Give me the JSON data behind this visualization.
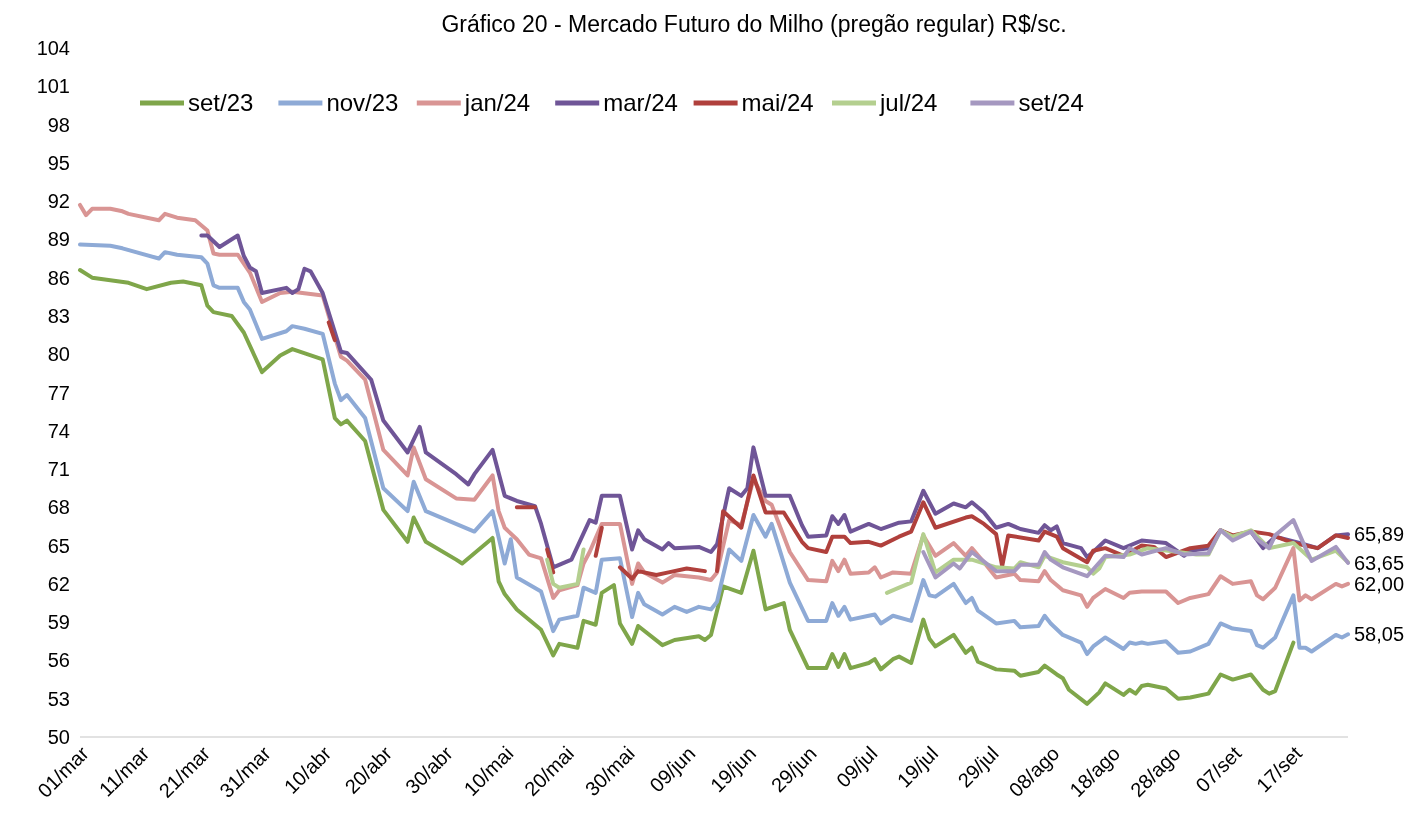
{
  "chart_data": {
    "type": "line",
    "title": "Gráfico 20 - Mercado Futuro do Milho (pregão regular) R$/sc.",
    "xlim": [
      "--03-01",
      "--09-26"
    ],
    "ylim": [
      50,
      104
    ],
    "yticks": [
      50,
      53,
      56,
      59,
      62,
      65,
      68,
      71,
      74,
      77,
      80,
      83,
      86,
      89,
      92,
      95,
      98,
      101,
      104
    ],
    "xticks": [
      {
        "value": "--03-01",
        "label": "01/mar"
      },
      {
        "value": "--03-11",
        "label": "11/mar"
      },
      {
        "value": "--03-21",
        "label": "21/mar"
      },
      {
        "value": "--03-31",
        "label": "31/mar"
      },
      {
        "value": "--04-10",
        "label": "10/abr"
      },
      {
        "value": "--04-20",
        "label": "20/abr"
      },
      {
        "value": "--04-30",
        "label": "30/abr"
      },
      {
        "value": "--05-10",
        "label": "10/mai"
      },
      {
        "value": "--05-20",
        "label": "20/mai"
      },
      {
        "value": "--05-30",
        "label": "30/mai"
      },
      {
        "value": "--06-09",
        "label": "09/jun"
      },
      {
        "value": "--06-19",
        "label": "19/jun"
      },
      {
        "value": "--06-29",
        "label": "29/jun"
      },
      {
        "value": "--07-09",
        "label": "09/jul"
      },
      {
        "value": "--07-19",
        "label": "19/jul"
      },
      {
        "value": "--07-29",
        "label": "29/jul"
      },
      {
        "value": "--08-08",
        "label": "08/ago"
      },
      {
        "value": "--08-18",
        "label": "18/ago"
      },
      {
        "value": "--08-28",
        "label": "28/ago"
      },
      {
        "value": "--09-07",
        "label": "07/set"
      },
      {
        "value": "--09-17",
        "label": "17/set"
      }
    ],
    "legend": "top",
    "grid": false,
    "marker": "none",
    "line_style": "solid",
    "annotations": [
      {
        "text": "65,89",
        "x": "--09-26",
        "y": 65.89
      },
      {
        "text": "63,65",
        "x": "--09-26",
        "y": 63.65
      },
      {
        "text": "62,00",
        "x": "--09-26",
        "y": 62.0
      },
      {
        "text": "58,05",
        "x": "--09-26",
        "y": 58.05
      }
    ],
    "series": [
      {
        "name": "set/23",
        "color": "#7fa64a",
        "x": [
          "--03-01",
          "--03-03",
          "--03-09",
          "--03-12",
          "--03-16",
          "--03-18",
          "--03-21",
          "--03-22",
          "--03-23",
          "--03-26",
          "--03-28",
          "--03-31",
          "--04-03",
          "--04-05",
          "--04-10",
          "--04-12",
          "--04-13",
          "--04-14",
          "--04-17",
          "--04-20",
          "--04-24",
          "--04-25",
          "--04-27",
          "--05-02",
          "--05-03",
          "--05-08",
          "--05-09",
          "--05-10",
          "--05-12",
          "--05-16",
          "--05-18",
          "--05-19",
          "--05-22",
          "--05-23",
          "--05-25",
          "--05-26",
          "--05-28",
          "--05-29",
          "--05-31",
          "--06-01",
          "--06-05",
          "--06-07",
          "--06-11",
          "--06-12",
          "--06-13",
          "--06-15",
          "--06-18",
          "--06-20",
          "--06-22",
          "--06-25",
          "--06-26",
          "--06-29",
          "--07-02",
          "--07-03",
          "--07-04",
          "--07-05",
          "--07-06",
          "--07-09",
          "--07-10",
          "--07-11",
          "--07-13",
          "--07-14",
          "--07-16",
          "--07-18",
          "--07-19",
          "--07-20",
          "--07-23",
          "--07-25",
          "--07-26",
          "--07-27",
          "--07-30",
          "--08-02",
          "--08-03",
          "--08-06",
          "--08-07",
          "--08-09",
          "--08-10",
          "--08-11",
          "--08-14",
          "--08-16",
          "--08-17",
          "--08-20",
          "--08-21",
          "--08-22",
          "--08-23",
          "--08-24",
          "--08-27",
          "--08-29",
          "--08-31",
          "--09-03",
          "--09-05",
          "--09-07",
          "--09-10",
          "--09-12",
          "--09-13",
          "--09-14",
          "--09-17"
        ],
        "values": [
          86.6,
          86.0,
          85.6,
          85.1,
          85.6,
          85.7,
          85.4,
          83.8,
          83.3,
          83.0,
          81.7,
          78.6,
          79.9,
          80.4,
          79.6,
          75.0,
          74.5,
          74.8,
          73.2,
          67.8,
          65.3,
          67.2,
          65.3,
          63.9,
          63.6,
          65.6,
          62.2,
          61.2,
          60.0,
          58.4,
          56.4,
          57.3,
          57.0,
          59.1,
          58.8,
          61.3,
          61.9,
          58.9,
          57.3,
          58.7,
          57.2,
          57.6,
          57.9,
          57.6,
          58.0,
          61.8,
          61.3,
          64.6,
          60.0,
          60.5,
          58.4,
          55.4,
          55.4,
          56.5,
          55.5,
          56.5,
          55.4,
          55.8,
          56.1,
          55.3,
          56.1,
          56.3,
          55.8,
          59.2,
          57.7,
          57.1,
          58.0,
          56.6,
          57.0,
          55.9,
          55.3,
          55.2,
          54.8,
          55.1,
          55.6,
          54.9,
          54.6,
          53.7,
          52.6,
          53.5,
          54.2,
          53.3,
          53.7,
          53.4,
          54.0,
          54.1,
          53.8,
          53.0,
          53.1,
          53.4,
          54.9,
          54.5,
          54.9,
          53.7,
          53.4,
          53.6,
          57.4
        ]
      },
      {
        "name": "nov/23",
        "color": "#8eaad6",
        "x": [
          "--03-01",
          "--03-06",
          "--03-08",
          "--03-14",
          "--03-15",
          "--03-17",
          "--03-21",
          "--03-22",
          "--03-23",
          "--03-24",
          "--03-27",
          "--03-28",
          "--03-29",
          "--03-31",
          "--04-04",
          "--04-05",
          "--04-07",
          "--04-10",
          "--04-12",
          "--04-13",
          "--04-14",
          "--04-17",
          "--04-20",
          "--04-24",
          "--04-25",
          "--04-27",
          "--05-05",
          "--05-08",
          "--05-10",
          "--05-11",
          "--05-12",
          "--05-16",
          "--05-18",
          "--05-19",
          "--05-22",
          "--05-23",
          "--05-25",
          "--05-26",
          "--05-29",
          "--05-31",
          "--06-01",
          "--06-02",
          "--06-05",
          "--06-07",
          "--06-09",
          "--06-11",
          "--06-13",
          "--06-14",
          "--06-16",
          "--06-18",
          "--06-20",
          "--06-22",
          "--06-23",
          "--06-26",
          "--06-29",
          "--07-02",
          "--07-03",
          "--07-04",
          "--07-05",
          "--07-06",
          "--07-09",
          "--07-10",
          "--07-11",
          "--07-13",
          "--07-16",
          "--07-18",
          "--07-19",
          "--07-20",
          "--07-23",
          "--07-25",
          "--07-26",
          "--07-27",
          "--07-30",
          "--08-02",
          "--08-03",
          "--08-06",
          "--08-07",
          "--08-08",
          "--08-10",
          "--08-13",
          "--08-14",
          "--08-15",
          "--08-17",
          "--08-20",
          "--08-21",
          "--08-22",
          "--08-23",
          "--08-24",
          "--08-27",
          "--08-29",
          "--08-31",
          "--09-03",
          "--09-05",
          "--09-07",
          "--09-10",
          "--09-11",
          "--09-12",
          "--09-14",
          "--09-17",
          "--09-18",
          "--09-19",
          "--09-20",
          "--09-24",
          "--09-25",
          "--09-26"
        ],
        "values": [
          88.6,
          88.5,
          88.3,
          87.5,
          88.0,
          87.8,
          87.6,
          87.1,
          85.4,
          85.2,
          85.2,
          84.1,
          83.5,
          81.2,
          81.8,
          82.2,
          82.0,
          81.6,
          77.7,
          76.4,
          76.8,
          75.0,
          69.5,
          67.7,
          70.0,
          67.7,
          66.1,
          67.7,
          63.6,
          65.5,
          62.5,
          61.4,
          58.3,
          59.2,
          59.5,
          61.7,
          61.3,
          63.9,
          64.0,
          59.4,
          61.3,
          60.4,
          59.6,
          60.2,
          59.8,
          60.2,
          60.0,
          60.6,
          64.7,
          63.8,
          67.4,
          65.7,
          66.7,
          62.1,
          59.1,
          59.1,
          60.5,
          59.5,
          60.2,
          59.2,
          59.5,
          59.6,
          58.9,
          59.5,
          59.1,
          62.3,
          61.1,
          61.0,
          62.0,
          60.5,
          60.9,
          59.9,
          58.9,
          59.1,
          58.6,
          58.7,
          59.5,
          58.9,
          58.0,
          57.4,
          56.5,
          57.1,
          57.8,
          56.9,
          57.4,
          57.3,
          57.4,
          57.3,
          57.5,
          56.6,
          56.7,
          57.3,
          58.9,
          58.5,
          58.3,
          57.2,
          57.0,
          57.8,
          61.1,
          57.0,
          57.0,
          56.7,
          58.0,
          57.8,
          58.05
        ]
      },
      {
        "name": "jan/24",
        "color": "#d99594",
        "x": [
          "--03-01",
          "--03-02",
          "--03-03",
          "--03-06",
          "--03-08",
          "--03-09",
          "--03-14",
          "--03-15",
          "--03-17",
          "--03-20",
          "--03-22",
          "--03-23",
          "--03-24",
          "--03-27",
          "--03-29",
          "--03-31",
          "--04-03",
          "--04-05",
          "--04-10",
          "--04-13",
          "--04-14",
          "--04-17",
          "--04-20",
          "--04-24",
          "--04-25",
          "--04-27",
          "--05-02",
          "--05-05",
          "--05-08",
          "--05-09",
          "--05-10",
          "--05-12",
          "--05-14",
          "--05-16",
          "--05-18",
          "--05-19",
          "--05-22",
          "--05-23",
          "--05-24",
          "--05-26",
          "--05-29",
          "--05-31",
          "--06-01",
          "--06-02",
          "--06-05",
          "--06-07",
          "--06-11",
          "--06-13",
          "--06-14",
          "--06-16",
          "--06-18",
          "--06-20",
          "--06-22",
          "--06-23",
          "--06-26",
          "--06-29",
          "--07-02",
          "--07-03",
          "--07-04",
          "--07-05",
          "--07-06",
          "--07-09",
          "--07-10",
          "--07-11",
          "--07-13",
          "--07-16",
          "--07-18",
          "--07-20",
          "--07-23",
          "--07-25",
          "--07-26",
          "--07-28",
          "--07-30",
          "--08-02",
          "--08-03",
          "--08-06",
          "--08-07",
          "--08-08",
          "--08-10",
          "--08-13",
          "--08-14",
          "--08-15",
          "--08-17",
          "--08-20",
          "--08-21",
          "--08-23",
          "--08-27",
          "--08-29",
          "--08-31",
          "--09-03",
          "--09-05",
          "--09-07",
          "--09-10",
          "--09-11",
          "--09-12",
          "--09-14",
          "--09-17",
          "--09-18",
          "--09-19",
          "--09-20",
          "--09-24",
          "--09-25",
          "--09-26"
        ],
        "values": [
          91.7,
          90.9,
          91.4,
          91.4,
          91.2,
          91.0,
          90.5,
          91.0,
          90.7,
          90.5,
          89.7,
          87.9,
          87.8,
          87.8,
          86.4,
          84.1,
          84.8,
          84.9,
          84.6,
          79.8,
          79.5,
          78.0,
          72.5,
          70.5,
          72.7,
          70.2,
          68.7,
          68.6,
          70.5,
          67.7,
          66.4,
          65.5,
          64.3,
          64.0,
          60.9,
          61.5,
          61.9,
          63.6,
          64.5,
          66.7,
          66.7,
          62.0,
          63.6,
          62.9,
          62.1,
          62.7,
          62.5,
          62.3,
          62.9,
          67.0,
          66.6,
          70.2,
          68.5,
          68.2,
          64.5,
          62.3,
          62.2,
          63.8,
          63.0,
          63.9,
          62.8,
          62.9,
          63.3,
          62.5,
          62.9,
          62.8,
          65.8,
          64.2,
          65.2,
          64.2,
          64.8,
          63.7,
          62.5,
          62.8,
          62.3,
          62.2,
          63.0,
          62.3,
          61.5,
          61.1,
          60.2,
          60.9,
          61.6,
          60.9,
          61.3,
          61.4,
          61.4,
          60.5,
          60.9,
          61.2,
          62.6,
          62.0,
          62.2,
          61.1,
          60.8,
          61.7,
          64.8,
          60.7,
          61.1,
          60.8,
          62.0,
          61.8,
          62.0
        ]
      },
      {
        "name": "mar/24",
        "color": "#6f5597",
        "x": [
          "--03-21",
          "--03-22",
          "--03-24",
          "--03-27",
          "--03-28",
          "--03-29",
          "--03-30",
          "--03-31",
          "--04-04",
          "--04-05",
          "--04-06",
          "--04-07",
          "--04-08",
          "--04-10",
          "--04-13",
          "--04-14",
          "--04-18",
          "--04-20",
          "--04-24",
          "--04-26",
          "--04-27",
          "--05-02",
          "--05-04",
          "--05-05",
          "--05-08",
          "--05-10",
          "--05-12",
          "--05-15",
          "--05-16",
          "--05-18",
          "--05-21",
          "--05-24",
          "--05-25",
          "--05-26",
          "--05-29",
          "--05-31",
          "--06-01",
          "--06-02",
          "--06-05",
          "--06-06",
          "--06-07",
          "--06-11",
          "--06-13",
          "--06-14",
          "--06-16",
          "--06-18",
          "--06-19",
          "--06-20",
          "--06-22",
          "--06-26",
          "--06-28",
          "--06-29",
          "--07-02",
          "--07-03",
          "--07-04",
          "--07-05",
          "--07-06",
          "--07-09",
          "--07-11",
          "--07-14",
          "--07-16",
          "--07-18",
          "--07-20",
          "--07-23",
          "--07-25",
          "--07-26",
          "--07-28",
          "--07-30",
          "--08-01",
          "--08-03",
          "--08-06",
          "--08-07",
          "--08-08",
          "--08-09",
          "--08-10",
          "--08-13",
          "--08-14",
          "--08-15",
          "--08-17",
          "--08-20",
          "--08-23",
          "--08-27",
          "--08-30",
          "--08-31",
          "--09-03",
          "--09-05",
          "--09-07",
          "--09-10",
          "--09-12",
          "--09-14",
          "--09-18",
          "--09-21",
          "--09-24",
          "--09-26"
        ],
        "values": [
          89.3,
          89.3,
          88.4,
          89.3,
          87.7,
          86.8,
          86.5,
          84.8,
          85.2,
          84.8,
          85.1,
          86.7,
          86.5,
          84.8,
          80.2,
          80.1,
          78.0,
          74.8,
          72.3,
          74.3,
          72.3,
          70.6,
          69.8,
          70.6,
          72.5,
          68.9,
          68.5,
          68.1,
          66.7,
          63.3,
          63.9,
          67.0,
          66.8,
          68.9,
          68.9,
          64.7,
          66.2,
          65.5,
          64.7,
          65.2,
          64.8,
          64.9,
          64.5,
          65.1,
          69.5,
          68.9,
          69.5,
          72.7,
          68.9,
          68.9,
          66.6,
          65.7,
          65.8,
          67.3,
          66.7,
          67.4,
          66.1,
          66.7,
          66.3,
          66.8,
          66.9,
          69.3,
          67.5,
          68.3,
          68.0,
          68.4,
          67.6,
          66.4,
          66.7,
          66.3,
          66.0,
          66.6,
          66.2,
          66.5,
          65.2,
          64.8,
          64.1,
          64.5,
          65.4,
          64.8,
          65.4,
          65.2,
          64.2,
          64.6,
          64.8,
          66.2,
          65.7,
          66.1,
          64.8,
          65.7,
          65.2,
          64.8,
          65.8,
          65.89
        ]
      },
      {
        "name": "mai/24",
        "color": "#b0403c",
        "x": [
          "--04-11",
          "--04-12",
          "--04-13",
          "--05-12",
          "--05-15",
          "--05-16",
          "--05-17",
          "--05-18",
          "--05-20",
          "--05-25",
          "--05-26",
          "--05-27",
          "--05-29",
          "--05-31",
          "--06-01",
          "--06-04",
          "--06-06",
          "--06-09",
          "--06-12",
          "--06-13",
          "--06-14",
          "--06-15",
          "--06-18",
          "--06-20",
          "--06-22",
          "--06-25",
          "--06-28",
          "--06-29",
          "--07-02",
          "--07-03",
          "--07-05",
          "--07-06",
          "--07-09",
          "--07-11",
          "--07-14",
          "--07-16",
          "--07-18",
          "--07-20",
          "--07-25",
          "--07-26",
          "--07-28",
          "--07-30",
          "--07-31",
          "--08-01",
          "--08-06",
          "--08-07",
          "--08-09",
          "--08-10",
          "--08-14",
          "--08-15",
          "--08-17",
          "--08-20",
          "--08-23",
          "--08-25",
          "--08-27",
          "--08-31",
          "--09-03",
          "--09-05",
          "--09-07",
          "--09-10",
          "--09-13",
          "--09-17",
          "--09-21",
          "--09-24",
          "--09-26"
        ],
        "values": [
          82.5,
          81.1,
          null,
          68.0,
          68.0,
          null,
          64.7,
          62.9,
          null,
          64.2,
          66.4,
          null,
          63.3,
          62.4,
          63.0,
          62.7,
          62.9,
          63.2,
          63.0,
          null,
          63.0,
          67.7,
          66.4,
          70.5,
          67.6,
          67.6,
          65.3,
          64.8,
          64.5,
          65.7,
          65.7,
          65.2,
          65.3,
          65.0,
          65.7,
          66.1,
          68.4,
          66.4,
          67.2,
          67.3,
          66.7,
          65.9,
          63.4,
          65.8,
          65.4,
          66.1,
          65.7,
          64.8,
          63.7,
          64.6,
          64.8,
          64.2,
          65.0,
          64.9,
          64.1,
          64.8,
          65.0,
          66.2,
          65.8,
          66.1,
          65.9,
          65.2,
          64.8,
          65.8,
          65.6
        ]
      },
      {
        "name": "jul/24",
        "color": "#b4cf8f",
        "x": [
          "--05-17",
          "--05-18",
          "--05-19",
          "--05-22",
          "--05-23",
          "--05-24",
          "--07-12",
          "--07-14",
          "--07-16",
          "--07-18",
          "--07-20",
          "--07-23",
          "--07-26",
          "--07-30",
          "--08-02",
          "--08-03",
          "--08-06",
          "--08-07",
          "--08-10",
          "--08-14",
          "--08-15",
          "--08-16",
          "--08-17",
          "--08-21",
          "--08-24",
          "--08-29",
          "--09-01",
          "--09-03",
          "--09-05",
          "--09-07",
          "--09-10",
          "--09-13",
          "--09-17",
          "--09-20",
          "--09-24",
          "--09-26"
        ],
        "values": [
          63.9,
          62.0,
          61.7,
          62.0,
          64.7,
          null,
          61.3,
          61.7,
          62.1,
          65.9,
          62.9,
          63.9,
          63.9,
          63.3,
          63.2,
          63.7,
          63.3,
          64.2,
          63.7,
          63.3,
          62.8,
          63.2,
          64.1,
          64.3,
          64.8,
          64.5,
          64.3,
          64.3,
          66.2,
          65.7,
          66.2,
          64.8,
          65.2,
          63.9,
          64.6,
          63.7
        ]
      },
      {
        "name": "set/24",
        "color": "#a598c0",
        "x": [
          "--07-18",
          "--07-20",
          "--07-23",
          "--07-24",
          "--07-26",
          "--07-30",
          "--08-02",
          "--08-03",
          "--08-06",
          "--08-07",
          "--08-08",
          "--08-10",
          "--08-14",
          "--08-17",
          "--08-20",
          "--08-21",
          "--08-23",
          "--08-27",
          "--08-30",
          "--09-03",
          "--09-05",
          "--09-07",
          "--09-10",
          "--09-11",
          "--09-13",
          "--09-14",
          "--09-17",
          "--09-19",
          "--09-20",
          "--09-24",
          "--09-26"
        ],
        "values": [
          64.5,
          62.5,
          63.6,
          63.2,
          64.5,
          63.0,
          63.0,
          63.5,
          63.5,
          64.5,
          63.9,
          63.3,
          62.6,
          64.2,
          64.1,
          64.8,
          64.3,
          64.8,
          64.3,
          64.4,
          66.2,
          65.4,
          66.1,
          65.5,
          64.8,
          65.8,
          67.0,
          64.8,
          63.8,
          64.9,
          63.65
        ]
      }
    ]
  }
}
